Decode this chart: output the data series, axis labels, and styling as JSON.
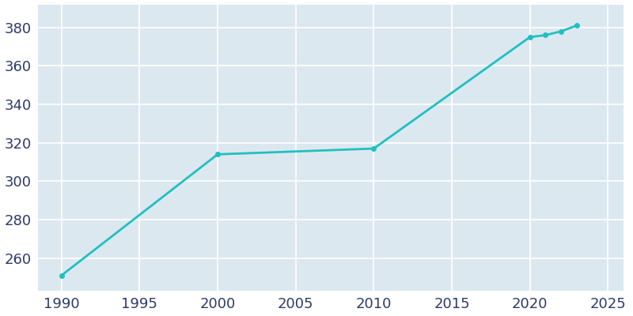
{
  "years": [
    1990,
    2000,
    2010,
    2020,
    2021,
    2022,
    2023
  ],
  "population": [
    251,
    314,
    317,
    375,
    376,
    378,
    381
  ],
  "line_color": "#20c0c0",
  "marker_color": "#20c0c0",
  "fig_bg_color": "#ffffff",
  "plot_bg_color": "#dce8f0",
  "grid_color": "#ffffff",
  "tick_color": "#2d3a6b",
  "xlim": [
    1988.5,
    2026
  ],
  "ylim": [
    243,
    392
  ],
  "xticks": [
    1990,
    1995,
    2000,
    2005,
    2010,
    2015,
    2020,
    2025
  ],
  "yticks": [
    260,
    280,
    300,
    320,
    340,
    360,
    380
  ],
  "tick_fontsize": 13,
  "linewidth": 2.0,
  "markersize": 4
}
